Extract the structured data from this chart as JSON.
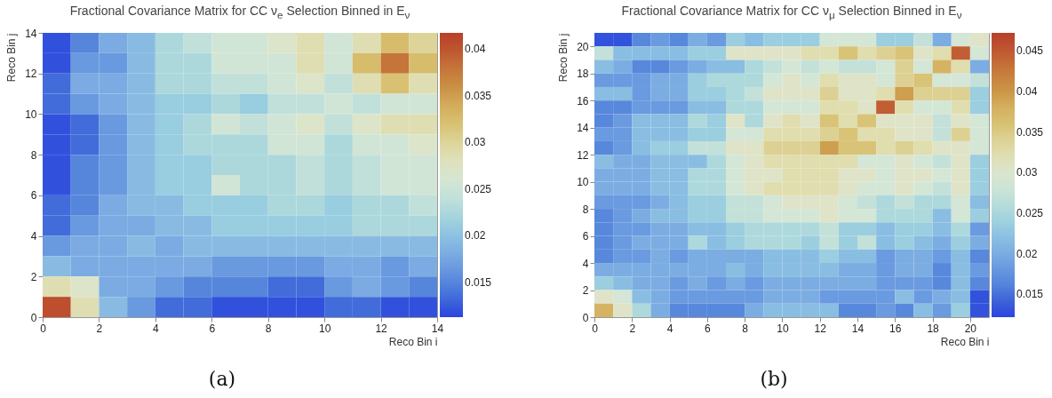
{
  "chart_data": [
    {
      "type": "heatmap",
      "title": "Fractional Covariance Matrix for CC ν$_{e}$ Selection Binned in E$_{ν}$",
      "xlabel": "Reco Bin i",
      "ylabel": "Reco Bin j",
      "annotations": [
        "(a)"
      ],
      "xlim": [
        0,
        14
      ],
      "xticks": [
        0,
        2,
        4,
        6,
        8,
        10,
        12,
        14
      ],
      "ylim": [
        0,
        14
      ],
      "yticks": [
        0,
        2,
        4,
        6,
        8,
        10,
        12,
        14
      ],
      "clim": [
        0.0113,
        0.0417
      ],
      "cticks": [
        0.015,
        0.02,
        0.025,
        0.03,
        0.035,
        0.04
      ],
      "cells": [
        [
          0.012,
          0.015,
          0.018,
          0.0195,
          0.0225,
          0.024,
          0.0255,
          0.0255,
          0.027,
          0.0285,
          0.0255,
          0.0285,
          0.0325,
          0.03
        ],
        [
          0.012,
          0.0165,
          0.0165,
          0.0195,
          0.0225,
          0.0225,
          0.0255,
          0.0255,
          0.0255,
          0.0285,
          0.0255,
          0.0325,
          0.038,
          0.0325
        ],
        [
          0.0135,
          0.018,
          0.018,
          0.0195,
          0.0225,
          0.0225,
          0.024,
          0.024,
          0.0255,
          0.027,
          0.024,
          0.0285,
          0.032,
          0.0285
        ],
        [
          0.0135,
          0.0165,
          0.018,
          0.0195,
          0.021,
          0.021,
          0.0225,
          0.021,
          0.024,
          0.024,
          0.0255,
          0.024,
          0.0255,
          0.0255
        ],
        [
          0.012,
          0.0135,
          0.0165,
          0.0195,
          0.021,
          0.0225,
          0.0255,
          0.024,
          0.0255,
          0.027,
          0.024,
          0.027,
          0.0285,
          0.0285
        ],
        [
          0.012,
          0.0135,
          0.0165,
          0.0195,
          0.021,
          0.0225,
          0.0225,
          0.0225,
          0.0255,
          0.0255,
          0.0225,
          0.0255,
          0.0255,
          0.027
        ],
        [
          0.012,
          0.015,
          0.0165,
          0.0195,
          0.021,
          0.021,
          0.0225,
          0.0225,
          0.0225,
          0.024,
          0.0225,
          0.024,
          0.0255,
          0.0255
        ],
        [
          0.012,
          0.015,
          0.0165,
          0.0195,
          0.021,
          0.021,
          0.0255,
          0.0225,
          0.0225,
          0.024,
          0.0225,
          0.024,
          0.0255,
          0.0255
        ],
        [
          0.0135,
          0.015,
          0.018,
          0.0195,
          0.0195,
          0.021,
          0.021,
          0.021,
          0.0225,
          0.0225,
          0.021,
          0.0225,
          0.0225,
          0.024
        ],
        [
          0.0135,
          0.0165,
          0.018,
          0.018,
          0.0195,
          0.0195,
          0.021,
          0.021,
          0.021,
          0.021,
          0.021,
          0.0225,
          0.0225,
          0.0225
        ],
        [
          0.0165,
          0.018,
          0.018,
          0.0195,
          0.018,
          0.0195,
          0.0195,
          0.0195,
          0.0195,
          0.0195,
          0.0195,
          0.0195,
          0.0195,
          0.0195
        ],
        [
          0.0195,
          0.018,
          0.018,
          0.018,
          0.018,
          0.018,
          0.0165,
          0.0165,
          0.0165,
          0.0165,
          0.018,
          0.018,
          0.0165,
          0.018
        ],
        [
          0.0285,
          0.027,
          0.018,
          0.018,
          0.0165,
          0.015,
          0.015,
          0.015,
          0.0135,
          0.0135,
          0.0165,
          0.018,
          0.0165,
          0.015
        ],
        [
          0.0405,
          0.0285,
          0.0195,
          0.0165,
          0.0135,
          0.0135,
          0.012,
          0.012,
          0.012,
          0.012,
          0.0135,
          0.0135,
          0.012,
          0.012
        ]
      ]
    },
    {
      "type": "heatmap",
      "title": "Fractional Covariance Matrix for CC ν$_{μ}$ Selection Binned in E$_{ν}$",
      "xlabel": "Reco Bin i",
      "ylabel": "Reco Bin j",
      "annotations": [
        "(b)"
      ],
      "xlim": [
        0,
        21
      ],
      "xticks": [
        0,
        2,
        4,
        6,
        8,
        10,
        12,
        14,
        16,
        18,
        20
      ],
      "ylim": [
        0,
        21
      ],
      "yticks": [
        0,
        2,
        4,
        6,
        8,
        10,
        12,
        14,
        16,
        18,
        20
      ],
      "clim": [
        0.0122,
        0.0472
      ],
      "cticks": [
        0.015,
        0.02,
        0.025,
        0.03,
        0.035,
        0.04,
        0.045
      ],
      "cells": [
        [
          0.0131,
          0.0131,
          0.0166,
          0.0183,
          0.0166,
          0.0201,
          0.0183,
          0.0236,
          0.0218,
          0.0236,
          0.0236,
          0.0236,
          0.0288,
          0.0288,
          0.0288,
          0.0236,
          0.0236,
          0.0271,
          0.0201,
          0.0288,
          0.0306
        ],
        [
          0.0271,
          0.0218,
          0.0218,
          0.0218,
          0.0218,
          0.0236,
          0.0236,
          0.0306,
          0.0306,
          0.0306,
          0.0306,
          0.0323,
          0.0323,
          0.0358,
          0.0323,
          0.0341,
          0.0358,
          0.0306,
          0.0323,
          0.0445,
          0.0288
        ],
        [
          0.0218,
          0.0201,
          0.0166,
          0.0166,
          0.0183,
          0.0201,
          0.0218,
          0.0218,
          0.0253,
          0.0271,
          0.0288,
          0.0271,
          0.0288,
          0.0271,
          0.0271,
          0.0288,
          0.0341,
          0.0288,
          0.0376,
          0.0323,
          0.0201
        ],
        [
          0.0183,
          0.0183,
          0.0183,
          0.0201,
          0.0201,
          0.0236,
          0.0253,
          0.0253,
          0.0253,
          0.0288,
          0.0306,
          0.0288,
          0.0323,
          0.0306,
          0.0306,
          0.0288,
          0.0341,
          0.0358,
          0.0288,
          0.0288,
          0.0271
        ],
        [
          0.0218,
          0.0218,
          0.0183,
          0.0201,
          0.0201,
          0.0236,
          0.0236,
          0.0253,
          0.0271,
          0.0306,
          0.0306,
          0.0306,
          0.0341,
          0.0306,
          0.0306,
          0.0323,
          0.0393,
          0.0341,
          0.0341,
          0.0341,
          0.0236
        ],
        [
          0.0166,
          0.0166,
          0.0183,
          0.0183,
          0.0183,
          0.0218,
          0.0218,
          0.0253,
          0.0253,
          0.0288,
          0.0288,
          0.0288,
          0.0323,
          0.0323,
          0.0306,
          0.0445,
          0.0323,
          0.0288,
          0.0288,
          0.0323,
          0.0236
        ],
        [
          0.0166,
          0.0183,
          0.0218,
          0.0218,
          0.0218,
          0.0253,
          0.0236,
          0.0306,
          0.0253,
          0.0306,
          0.0323,
          0.0306,
          0.0358,
          0.0323,
          0.0358,
          0.0306,
          0.0306,
          0.0306,
          0.0271,
          0.0306,
          0.0288
        ],
        [
          0.0183,
          0.0183,
          0.0218,
          0.0218,
          0.0218,
          0.0236,
          0.0236,
          0.0288,
          0.0288,
          0.0323,
          0.0323,
          0.0323,
          0.0341,
          0.0358,
          0.0323,
          0.0323,
          0.0306,
          0.0306,
          0.0271,
          0.0341,
          0.0288
        ],
        [
          0.0166,
          0.0183,
          0.0218,
          0.0236,
          0.0236,
          0.0271,
          0.0271,
          0.0306,
          0.0306,
          0.0341,
          0.0341,
          0.0341,
          0.0393,
          0.0358,
          0.0358,
          0.0323,
          0.0341,
          0.0323,
          0.0306,
          0.0306,
          0.0288
        ],
        [
          0.0218,
          0.0201,
          0.0201,
          0.0218,
          0.0218,
          0.0218,
          0.0253,
          0.0288,
          0.0306,
          0.0323,
          0.0323,
          0.0323,
          0.0323,
          0.0323,
          0.0288,
          0.0288,
          0.0306,
          0.0288,
          0.0271,
          0.0306,
          0.0236
        ],
        [
          0.0201,
          0.0201,
          0.0201,
          0.0218,
          0.0218,
          0.0253,
          0.0253,
          0.0288,
          0.0306,
          0.0306,
          0.0323,
          0.0323,
          0.0323,
          0.0306,
          0.0306,
          0.0288,
          0.0306,
          0.0306,
          0.0288,
          0.0306,
          0.0236
        ],
        [
          0.0201,
          0.0201,
          0.0201,
          0.0218,
          0.0218,
          0.0253,
          0.0253,
          0.0288,
          0.0306,
          0.0323,
          0.0323,
          0.0323,
          0.0323,
          0.0306,
          0.0288,
          0.0288,
          0.0306,
          0.0288,
          0.0271,
          0.0306,
          0.0236
        ],
        [
          0.0183,
          0.0183,
          0.0183,
          0.0201,
          0.0218,
          0.0236,
          0.0236,
          0.0271,
          0.0271,
          0.0288,
          0.0306,
          0.0306,
          0.0306,
          0.0288,
          0.0271,
          0.0253,
          0.0271,
          0.0253,
          0.0253,
          0.0288,
          0.0218
        ],
        [
          0.0166,
          0.0183,
          0.0201,
          0.0218,
          0.0218,
          0.0236,
          0.0236,
          0.0271,
          0.0271,
          0.0288,
          0.0288,
          0.0288,
          0.0306,
          0.0288,
          0.0288,
          0.0253,
          0.0253,
          0.0253,
          0.0218,
          0.0288,
          0.0236
        ],
        [
          0.0166,
          0.0183,
          0.0183,
          0.0201,
          0.0201,
          0.0218,
          0.0218,
          0.0236,
          0.0253,
          0.0253,
          0.0253,
          0.0253,
          0.0271,
          0.0236,
          0.0236,
          0.0218,
          0.0236,
          0.0236,
          0.0218,
          0.0253,
          0.0183
        ],
        [
          0.0166,
          0.0183,
          0.0201,
          0.0201,
          0.0201,
          0.0253,
          0.0218,
          0.0236,
          0.0253,
          0.0253,
          0.0253,
          0.0236,
          0.0271,
          0.0236,
          0.0271,
          0.0218,
          0.0236,
          0.0218,
          0.0201,
          0.0236,
          0.0201
        ],
        [
          0.0166,
          0.0183,
          0.0183,
          0.0201,
          0.0183,
          0.0201,
          0.0201,
          0.0201,
          0.0201,
          0.0218,
          0.0218,
          0.0218,
          0.0236,
          0.0218,
          0.0218,
          0.0183,
          0.0201,
          0.0201,
          0.0183,
          0.0218,
          0.0166
        ],
        [
          0.0201,
          0.0201,
          0.0201,
          0.0201,
          0.0201,
          0.0201,
          0.0201,
          0.0218,
          0.0201,
          0.0218,
          0.0218,
          0.0218,
          0.0218,
          0.0201,
          0.0201,
          0.0183,
          0.0201,
          0.0201,
          0.0166,
          0.0218,
          0.0183
        ],
        [
          0.0236,
          0.0218,
          0.0201,
          0.0201,
          0.0183,
          0.0201,
          0.0183,
          0.0201,
          0.0183,
          0.0201,
          0.0201,
          0.0201,
          0.0201,
          0.0201,
          0.0201,
          0.0183,
          0.0183,
          0.0183,
          0.0166,
          0.0218,
          0.0166
        ],
        [
          0.0306,
          0.0288,
          0.0218,
          0.0201,
          0.0183,
          0.0183,
          0.0183,
          0.0183,
          0.0183,
          0.0201,
          0.0201,
          0.0201,
          0.0183,
          0.0183,
          0.0183,
          0.0183,
          0.0218,
          0.0183,
          0.0201,
          0.0218,
          0.0131
        ],
        [
          0.0376,
          0.0306,
          0.0253,
          0.0201,
          0.0166,
          0.0166,
          0.0166,
          0.0166,
          0.0201,
          0.0218,
          0.0218,
          0.0218,
          0.0218,
          0.0166,
          0.0166,
          0.0183,
          0.0166,
          0.0218,
          0.0183,
          0.0236,
          0.0131
        ]
      ]
    }
  ]
}
